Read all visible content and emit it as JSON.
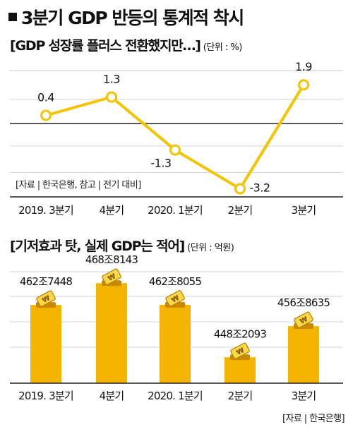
{
  "header": {
    "title": "3분기 GDP 반등의 통계적 착시"
  },
  "chart_data": [
    {
      "type": "line",
      "title": "[GDP 성장률 플러스 전환했지만…]",
      "unit": "(단위 : %)",
      "source": "[자료 | 한국은행, 참고 | 전기 대비]",
      "categories": [
        "2019. 3분기",
        "4분기",
        "2020. 1분기",
        "2분기",
        "3분기"
      ],
      "values": [
        0.4,
        1.3,
        -1.3,
        -3.2,
        1.9
      ],
      "value_labels": [
        "0.4",
        "1.3",
        "-1.3",
        "-3.2",
        "1.9"
      ],
      "ylim": [
        -3.6,
        2.6
      ],
      "grid": true,
      "color": "#f5c400"
    },
    {
      "type": "bar",
      "title": "[기저효과 탓, 실제 GDP는 적어]",
      "unit": "(단위 : 억원)",
      "source": "[자료 | 한국은행]",
      "categories": [
        "2019. 3분기",
        "4분기",
        "2020. 1분기",
        "2분기",
        "3분기"
      ],
      "values": [
        4627448,
        4688143,
        4628055,
        4482093,
        4568635
      ],
      "value_labels": [
        "462조7448",
        "468조8143",
        "462조8055",
        "448조2093",
        "456조8635"
      ],
      "ylim": [
        4410000,
        4720000
      ],
      "grid": true,
      "color": "#f5b400",
      "icon": "won-coin-stack-icon"
    }
  ]
}
